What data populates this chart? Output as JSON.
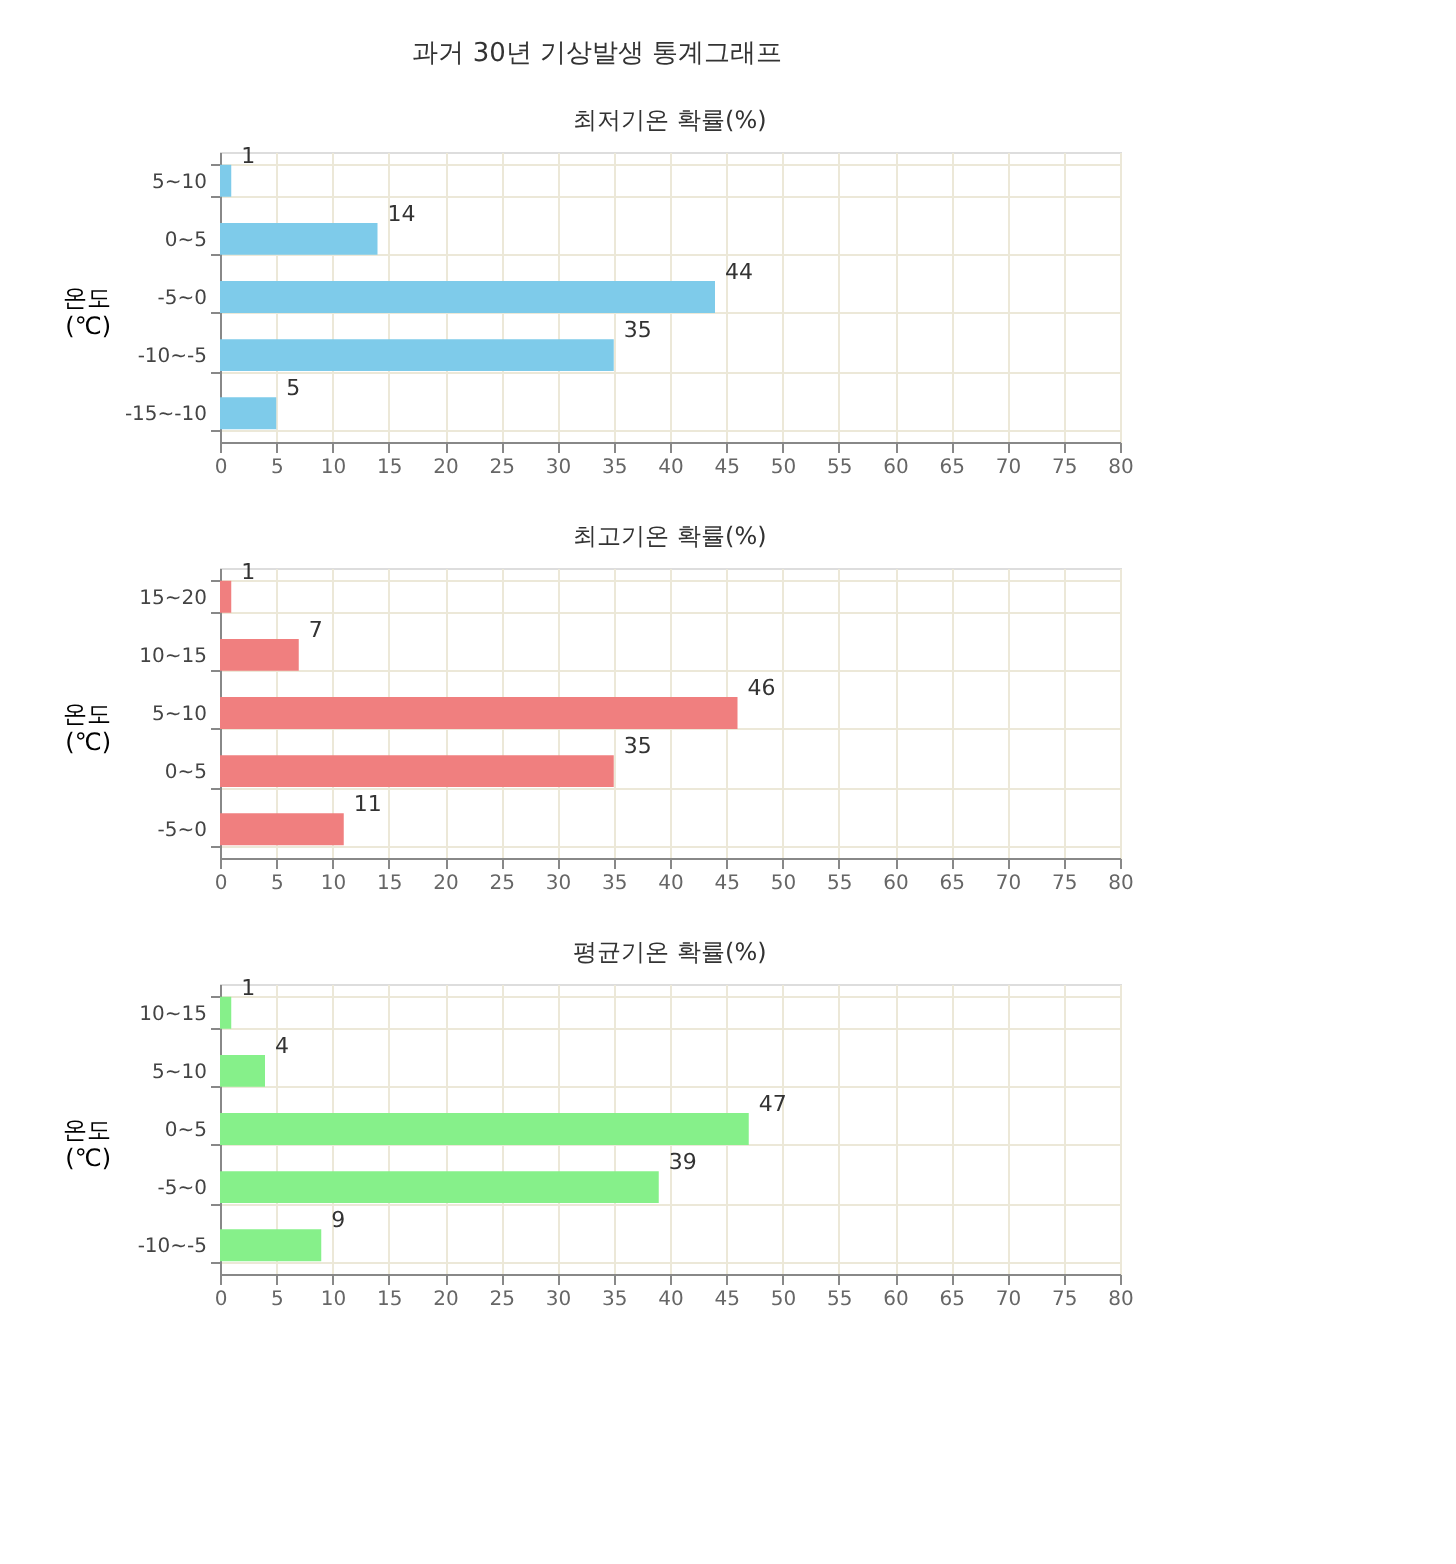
{
  "chart_data": [
    {
      "type": "bar",
      "orientation": "horizontal",
      "title": "최저기온 확률(%)",
      "ylabel": "온도 (℃)",
      "annotations": [
        "과거 30년 기상발생 통계그래프"
      ],
      "categories": [
        "5~10",
        "0~5",
        "-5~0",
        "-10~-5",
        "-15~-10"
      ],
      "values": [
        1,
        14,
        44,
        35,
        5
      ],
      "color": "#7ecbea",
      "xlim": [
        0,
        80
      ],
      "xticks": [
        0,
        5,
        10,
        15,
        20,
        25,
        30,
        35,
        40,
        45,
        50,
        55,
        60,
        65,
        70,
        75,
        80
      ],
      "grid": true,
      "data_labels": true
    },
    {
      "type": "bar",
      "orientation": "horizontal",
      "title": "최고기온 확률(%)",
      "ylabel": "온도 (℃)",
      "categories": [
        "15~20",
        "10~15",
        "5~10",
        "0~5",
        "-5~0"
      ],
      "values": [
        1,
        7,
        46,
        35,
        11
      ],
      "color": "#f07f7f",
      "xlim": [
        0,
        80
      ],
      "xticks": [
        0,
        5,
        10,
        15,
        20,
        25,
        30,
        35,
        40,
        45,
        50,
        55,
        60,
        65,
        70,
        75,
        80
      ],
      "grid": true,
      "data_labels": true
    },
    {
      "type": "bar",
      "orientation": "horizontal",
      "title": "평균기온 확률(%)",
      "ylabel": "온도 (℃)",
      "categories": [
        "10~15",
        "5~10",
        "0~5",
        "-5~0",
        "-10~-5"
      ],
      "values": [
        1,
        4,
        47,
        39,
        9
      ],
      "color": "#86f08a",
      "xlim": [
        0,
        80
      ],
      "xticks": [
        0,
        5,
        10,
        15,
        20,
        25,
        30,
        35,
        40,
        45,
        50,
        55,
        60,
        65,
        70,
        75,
        80
      ],
      "grid": true,
      "data_labels": true
    }
  ]
}
